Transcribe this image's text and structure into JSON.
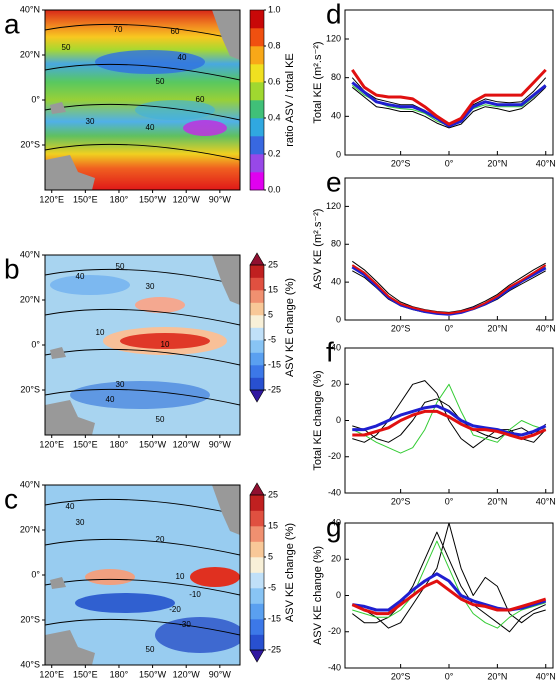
{
  "maps": [
    {
      "panel": "a",
      "colorbar_label": "ratio ASV / total KE",
      "latlim": [
        -40,
        40
      ],
      "lonlim": [
        114,
        288
      ],
      "lat_ticks": [
        {
          "value": 40,
          "label": "40°N"
        },
        {
          "value": 20,
          "label": "20°N"
        },
        {
          "value": 0,
          "label": "0°"
        },
        {
          "value": -20,
          "label": "20°S"
        }
      ],
      "lon_ticks": [
        {
          "value": 120,
          "label": "120°E"
        },
        {
          "value": 150,
          "label": "150°E"
        },
        {
          "value": 180,
          "label": "180°"
        },
        {
          "value": 210,
          "label": "150°W"
        },
        {
          "value": 240,
          "label": "120°W"
        },
        {
          "value": 270,
          "label": "90°W"
        }
      ],
      "colorbar_lim": [
        0,
        1
      ],
      "colorbar_ticks": [
        {
          "value": 1,
          "label": "1.0"
        },
        {
          "value": 0.8,
          "label": "0.8"
        },
        {
          "value": 0.6,
          "label": "0.6"
        },
        {
          "value": 0.4,
          "label": "0.4"
        },
        {
          "value": 0.2,
          "label": "0.2"
        },
        {
          "value": 0,
          "label": "0.0"
        }
      ],
      "colorbar_colors": [
        "#e000f0",
        "#9848e8",
        "#3868e0",
        "#30a8e0",
        "#40c078",
        "#a0d830",
        "#f0e020",
        "#f8a818",
        "#f05010",
        "#c80808"
      ],
      "contour_labels": [
        "70",
        "60",
        "50",
        "40",
        "50",
        "30",
        "40",
        "60"
      ]
    },
    {
      "panel": "b",
      "colorbar_label": "ASV KE change (%)",
      "latlim": [
        -40,
        40
      ],
      "lonlim": [
        114,
        288
      ],
      "lat_ticks": [
        {
          "value": 40,
          "label": "40°N"
        },
        {
          "value": 20,
          "label": "20°N"
        },
        {
          "value": 0,
          "label": "0°"
        },
        {
          "value": -20,
          "label": "20°S"
        }
      ],
      "lon_ticks": [
        {
          "value": 120,
          "label": "120°E"
        },
        {
          "value": 150,
          "label": "150°E"
        },
        {
          "value": 180,
          "label": "180°"
        },
        {
          "value": 210,
          "label": "150°W"
        },
        {
          "value": 240,
          "label": "120°W"
        },
        {
          "value": 270,
          "label": "90°W"
        }
      ],
      "colorbar_lim": [
        -25,
        25
      ],
      "colorbar_ticks": [
        25,
        15,
        5,
        -5,
        -15,
        -25
      ],
      "colorbar_colors": [
        "#3018a0",
        "#2850d0",
        "#3c78e8",
        "#5aa0f0",
        "#88c4f4",
        "#c0e0f8",
        "#f8f0d8",
        "#f8c898",
        "#f09070",
        "#e05040",
        "#c02020",
        "#901030"
      ],
      "contour_labels": [
        "40",
        "30",
        "50",
        "10",
        "10",
        "30",
        "40",
        "50"
      ]
    },
    {
      "panel": "c",
      "colorbar_label": "ASV KE change (%)",
      "latlim": [
        -40,
        40
      ],
      "lonlim": [
        114,
        288
      ],
      "lat_ticks": [
        {
          "value": 40,
          "label": "40°N"
        },
        {
          "value": 20,
          "label": "20°N"
        },
        {
          "value": 0,
          "label": "0°"
        },
        {
          "value": -20,
          "label": "20°S"
        },
        {
          "value": -40,
          "label": "40°S"
        }
      ],
      "lon_ticks": [
        {
          "value": 120,
          "label": "120°E"
        },
        {
          "value": 150,
          "label": "150°E"
        },
        {
          "value": 180,
          "label": "180°"
        },
        {
          "value": 210,
          "label": "150°W"
        },
        {
          "value": 240,
          "label": "120°W"
        },
        {
          "value": 270,
          "label": "90°W"
        }
      ],
      "colorbar_lim": [
        -25,
        25
      ],
      "colorbar_ticks": [
        25,
        15,
        5,
        -5,
        -15,
        -25
      ],
      "colorbar_colors": [
        "#3018a0",
        "#2850d0",
        "#3c78e8",
        "#5aa0f0",
        "#88c4f4",
        "#c0e0f8",
        "#f8f0d8",
        "#f8c898",
        "#f09070",
        "#e05040",
        "#c02020",
        "#901030"
      ],
      "contour_labels": [
        "40",
        "30",
        "20",
        "10",
        "-10",
        "-20",
        "-30",
        "50"
      ]
    }
  ],
  "chart_data": [
    {
      "type": "line",
      "panel": "d",
      "ylabel": "Total KE (m².s⁻²)",
      "xlim": [
        -43,
        43
      ],
      "ylim": [
        0,
        150
      ],
      "yticks": [
        0,
        40,
        80,
        120
      ],
      "xticks": [
        {
          "value": -20,
          "label": "20°S"
        },
        {
          "value": 0,
          "label": "0°"
        },
        {
          "value": 20,
          "label": "20°N"
        },
        {
          "value": 40,
          "label": "40°N"
        }
      ],
      "x": [
        -40,
        -35,
        -30,
        -25,
        -20,
        -15,
        -10,
        -5,
        0,
        5,
        10,
        15,
        20,
        25,
        30,
        35,
        40
      ],
      "series": [
        {
          "color": "#000000",
          "width": 1,
          "values": [
            70,
            60,
            50,
            48,
            45,
            45,
            40,
            33,
            28,
            32,
            45,
            50,
            48,
            45,
            48,
            58,
            70
          ]
        },
        {
          "color": "#000000",
          "width": 1,
          "values": [
            80,
            66,
            58,
            55,
            52,
            52,
            46,
            37,
            30,
            36,
            52,
            58,
            55,
            54,
            55,
            66,
            80
          ]
        },
        {
          "color": "#33cc33",
          "width": 1,
          "values": [
            72,
            62,
            55,
            50,
            48,
            47,
            43,
            35,
            30,
            34,
            48,
            52,
            50,
            50,
            50,
            60,
            72
          ]
        },
        {
          "color": "#1f1fd0",
          "width": 3,
          "values": [
            75,
            65,
            55,
            52,
            50,
            50,
            45,
            38,
            30,
            35,
            50,
            55,
            52,
            52,
            52,
            62,
            72
          ]
        },
        {
          "color": "#e01010",
          "width": 3,
          "values": [
            88,
            70,
            62,
            60,
            60,
            58,
            50,
            40,
            32,
            38,
            55,
            62,
            62,
            62,
            62,
            75,
            88
          ]
        }
      ]
    },
    {
      "type": "line",
      "panel": "e",
      "ylabel": "ASV KE (m².s⁻²)",
      "xlim": [
        -43,
        43
      ],
      "ylim": [
        0,
        150
      ],
      "yticks": [
        0,
        40,
        80,
        120
      ],
      "xticks": [
        {
          "value": -20,
          "label": "20°S"
        },
        {
          "value": 0,
          "label": "0°"
        },
        {
          "value": 20,
          "label": "20°N"
        },
        {
          "value": 40,
          "label": "40°N"
        }
      ],
      "x": [
        -40,
        -35,
        -30,
        -25,
        -20,
        -15,
        -10,
        -5,
        0,
        5,
        10,
        15,
        20,
        25,
        30,
        35,
        40
      ],
      "series": [
        {
          "color": "#000000",
          "width": 1,
          "values": [
            52,
            45,
            34,
            22,
            15,
            11,
            8,
            7,
            6,
            8,
            11,
            16,
            22,
            31,
            38,
            45,
            52
          ]
        },
        {
          "color": "#000000",
          "width": 1,
          "values": [
            62,
            53,
            41,
            28,
            19,
            14,
            11,
            9,
            8,
            10,
            14,
            20,
            27,
            37,
            45,
            53,
            60
          ]
        },
        {
          "color": "#33cc33",
          "width": 1,
          "values": [
            57,
            49,
            37,
            24,
            16,
            12,
            9,
            8,
            7,
            9,
            12,
            18,
            24,
            34,
            41,
            49,
            56
          ]
        },
        {
          "color": "#1f1fd0",
          "width": 3,
          "values": [
            56,
            48,
            36,
            24,
            16,
            12,
            9,
            7,
            6,
            8,
            12,
            17,
            24,
            33,
            41,
            48,
            55
          ]
        },
        {
          "color": "#e01010",
          "width": 2,
          "values": [
            58,
            50,
            38,
            25,
            17,
            13,
            10,
            8,
            7,
            9,
            12,
            18,
            25,
            35,
            42,
            50,
            58
          ]
        }
      ]
    },
    {
      "type": "line",
      "panel": "f",
      "ylabel": "Total KE change (%)",
      "xlim": [
        -43,
        43
      ],
      "ylim": [
        -40,
        40
      ],
      "yticks": [
        -40,
        -20,
        0,
        20,
        40
      ],
      "xticks": [
        {
          "value": -20,
          "label": "20°S"
        },
        {
          "value": 0,
          "label": "0°"
        },
        {
          "value": 20,
          "label": "20°N"
        },
        {
          "value": 40,
          "label": "40°N"
        }
      ],
      "x": [
        -40,
        -35,
        -30,
        -25,
        -20,
        -15,
        -10,
        -5,
        0,
        5,
        10,
        15,
        20,
        25,
        30,
        35,
        40
      ],
      "series": [
        {
          "color": "#000000",
          "width": 1,
          "values": [
            -10,
            -12,
            -8,
            0,
            10,
            20,
            22,
            15,
            0,
            -10,
            -15,
            -10,
            -5,
            -5,
            -10,
            -12,
            -5
          ]
        },
        {
          "color": "#000000",
          "width": 1,
          "values": [
            -3,
            -5,
            -10,
            -12,
            -8,
            0,
            10,
            12,
            8,
            0,
            -5,
            -8,
            -10,
            -6,
            -4,
            -8,
            -2
          ]
        },
        {
          "color": "#33cc33",
          "width": 1,
          "values": [
            -5,
            -8,
            -12,
            -15,
            -18,
            -15,
            -5,
            10,
            20,
            5,
            -8,
            -10,
            -12,
            -5,
            0,
            -3,
            -5
          ]
        },
        {
          "color": "#1f1fd0",
          "width": 3,
          "values": [
            -5,
            -5,
            -3,
            0,
            3,
            5,
            7,
            8,
            5,
            0,
            -3,
            -4,
            -5,
            -7,
            -8,
            -6,
            -3
          ]
        },
        {
          "color": "#e01010",
          "width": 3,
          "values": [
            -8,
            -8,
            -6,
            -4,
            0,
            3,
            5,
            5,
            2,
            -2,
            -5,
            -5,
            -6,
            -8,
            -10,
            -8,
            -5
          ]
        }
      ]
    },
    {
      "type": "line",
      "panel": "g",
      "ylabel": "ASV KE change (%)",
      "xlim": [
        -43,
        43
      ],
      "ylim": [
        -40,
        40
      ],
      "yticks": [
        -40,
        -20,
        0,
        20,
        40
      ],
      "xticks": [
        {
          "value": -20,
          "label": "20°S"
        },
        {
          "value": 0,
          "label": "0°"
        },
        {
          "value": 20,
          "label": "20°N"
        },
        {
          "value": 40,
          "label": "40°N"
        }
      ],
      "x": [
        -40,
        -35,
        -30,
        -25,
        -20,
        -15,
        -10,
        -5,
        0,
        5,
        10,
        15,
        20,
        25,
        30,
        35,
        40
      ],
      "series": [
        {
          "color": "#000000",
          "width": 1,
          "values": [
            -10,
            -15,
            -15,
            -12,
            -5,
            5,
            20,
            35,
            20,
            5,
            -5,
            -10,
            -15,
            -20,
            -12,
            -8,
            -5
          ]
        },
        {
          "color": "#000000",
          "width": 1,
          "values": [
            -5,
            -8,
            -12,
            -18,
            -15,
            -5,
            5,
            15,
            40,
            15,
            0,
            10,
            5,
            -10,
            -15,
            -10,
            -8
          ]
        },
        {
          "color": "#33cc33",
          "width": 1,
          "values": [
            -8,
            -10,
            -12,
            -12,
            -8,
            0,
            15,
            30,
            15,
            0,
            -10,
            -15,
            -18,
            -12,
            -8,
            -6,
            -4
          ]
        },
        {
          "color": "#1f1fd0",
          "width": 3,
          "values": [
            -5,
            -6,
            -8,
            -8,
            -3,
            3,
            8,
            12,
            8,
            0,
            -3,
            -5,
            -7,
            -8,
            -7,
            -5,
            -3
          ]
        },
        {
          "color": "#e01010",
          "width": 3,
          "values": [
            -5,
            -8,
            -10,
            -10,
            -5,
            0,
            5,
            8,
            3,
            -2,
            -5,
            -6,
            -8,
            -8,
            -6,
            -4,
            -2
          ]
        }
      ]
    }
  ]
}
